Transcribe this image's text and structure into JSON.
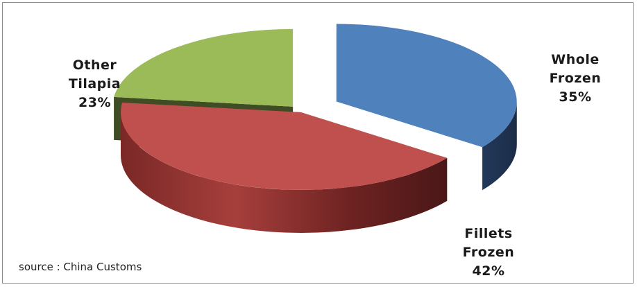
{
  "chart_data": {
    "type": "pie",
    "title": "",
    "slices": [
      {
        "name": "Whole Frozen",
        "line1": "Whole",
        "line2": "Frozen",
        "value": 35,
        "label": "35%",
        "color": "#4f81bd",
        "side_color": "#1f3351"
      },
      {
        "name": "Fillets Frozen",
        "line1": "Fillets",
        "line2": "Frozen",
        "value": 42,
        "label": "42%",
        "color": "#c0504d",
        "side_color": "#5e1f1d"
      },
      {
        "name": "Other Tilapia",
        "line1": "Other",
        "line2": "Tilapia",
        "value": 23,
        "label": "23%",
        "color": "#9bbb59",
        "side_color": "#3f4d24"
      }
    ],
    "style": "3d-exploded"
  },
  "source_text": "source :  China Customs"
}
